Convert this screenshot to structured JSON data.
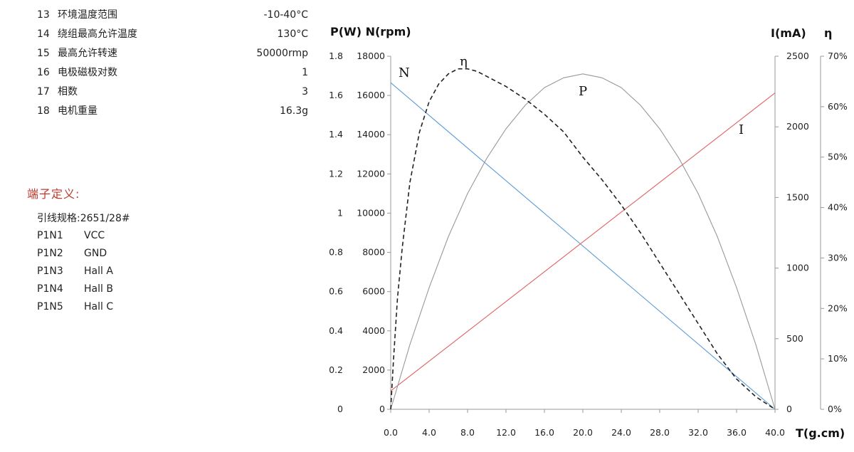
{
  "specs": [
    {
      "num": "13",
      "label": "环境温度范围",
      "value": "-10-40°C"
    },
    {
      "num": "14",
      "label": "绕组最高允许温度",
      "value": "130°C"
    },
    {
      "num": "15",
      "label": "最高允许转速",
      "value": "50000rmp"
    },
    {
      "num": "16",
      "label": "电极磁极对数",
      "value": "1"
    },
    {
      "num": "17",
      "label": "相数",
      "value": "3"
    },
    {
      "num": "18",
      "label": "电机重量",
      "value": "16.3g"
    }
  ],
  "terminal": {
    "title": "端子定义:",
    "wire_spec": "引线规格:2651/28#",
    "pins": [
      {
        "pin": "P1N1",
        "signal": "VCC"
      },
      {
        "pin": "P1N2",
        "signal": "GND"
      },
      {
        "pin": "P1N3",
        "signal": "Hall A"
      },
      {
        "pin": "P1N4",
        "signal": "Hall B"
      },
      {
        "pin": "P1N5",
        "signal": "Hall C"
      }
    ]
  },
  "colors": {
    "N": "#5b9bd5",
    "I": "#e06060",
    "P": "#999999",
    "eta": "#222222",
    "axis": "#999999",
    "terminal_title": "#c0392b"
  },
  "chart_data": {
    "type": "line",
    "title_left": "P(W) N(rpm)",
    "ylabel_I": "I(mA)",
    "ylabel_eta": "η",
    "xlabel": "T(g.cm)",
    "xlim": [
      0,
      40
    ],
    "x_ticks": [
      "0.0",
      "4.0",
      "8.0",
      "12.0",
      "16.0",
      "20.0",
      "24.0",
      "28.0",
      "32.0",
      "36.0",
      "40.0"
    ],
    "axes": {
      "P": {
        "range": [
          0,
          1.8
        ],
        "ticks": [
          "0",
          "0.2",
          "0.4",
          "0.6",
          "0.8",
          "1",
          "1.2",
          "1.4",
          "1.6",
          "1.8"
        ]
      },
      "N": {
        "range": [
          0,
          18000
        ],
        "ticks": [
          "0",
          "2000",
          "4000",
          "6000",
          "8000",
          "10000",
          "12000",
          "14000",
          "16000",
          "18000"
        ]
      },
      "I": {
        "range": [
          0,
          2500
        ],
        "ticks": [
          "0",
          "500",
          "1000",
          "1500",
          "2000",
          "2500"
        ]
      },
      "eta": {
        "range": [
          0,
          0.7
        ],
        "ticks": [
          "0%",
          "10%",
          "20%",
          "30%",
          "40%",
          "50%",
          "60%",
          "70%"
        ]
      }
    },
    "series": [
      {
        "name": "N",
        "axis": "N",
        "style": "solid",
        "x": [
          0,
          40
        ],
        "values": [
          16650,
          0
        ]
      },
      {
        "name": "I",
        "axis": "I",
        "style": "solid",
        "x": [
          0,
          40
        ],
        "values": [
          130,
          2240
        ]
      },
      {
        "name": "P",
        "axis": "P",
        "style": "solid",
        "x": [
          0,
          2,
          4,
          6,
          8,
          10,
          12,
          14,
          16,
          18,
          20,
          22,
          24,
          26,
          28,
          30,
          32,
          34,
          36,
          38,
          40
        ],
        "values": [
          0,
          0.33,
          0.62,
          0.88,
          1.1,
          1.28,
          1.43,
          1.55,
          1.64,
          1.69,
          1.71,
          1.69,
          1.64,
          1.55,
          1.43,
          1.28,
          1.1,
          0.88,
          0.62,
          0.33,
          0
        ]
      },
      {
        "name": "η",
        "axis": "eta",
        "style": "dashed",
        "x": [
          0,
          0.3,
          0.7,
          1.2,
          2,
          3,
          4,
          5,
          6,
          7,
          8,
          9,
          10,
          12,
          14,
          16,
          18,
          20,
          22,
          24,
          26,
          28,
          30,
          32,
          34,
          36,
          38,
          40
        ],
        "values": [
          0,
          0.1,
          0.22,
          0.32,
          0.45,
          0.55,
          0.61,
          0.645,
          0.665,
          0.675,
          0.675,
          0.67,
          0.66,
          0.64,
          0.615,
          0.585,
          0.55,
          0.5,
          0.455,
          0.405,
          0.35,
          0.29,
          0.23,
          0.17,
          0.11,
          0.06,
          0.025,
          0
        ]
      }
    ]
  }
}
